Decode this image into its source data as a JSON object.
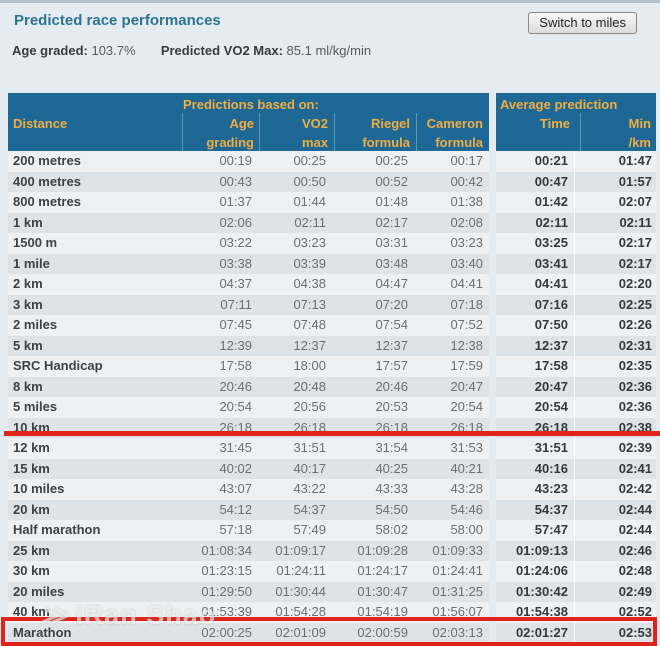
{
  "page": {
    "title": "Predicted race performances",
    "switch_button": "Switch to miles",
    "age_graded_label": "Age graded:",
    "age_graded_value": "103.7%",
    "vo2_label": "Predicted VO2 Max:",
    "vo2_value": "85.1 ml/kg/min"
  },
  "colors": {
    "header_bg": "#1d6894",
    "header_text": "#f0ad42",
    "title_text": "#2d7492",
    "row_odd": "#eef0f2",
    "row_even": "#dee3e8",
    "annotation_red": "#e0241c",
    "page_bg": "#e4ebf1"
  },
  "header": {
    "distance": "Distance",
    "predictions_group": "Predictions based on:",
    "average_group": "Average prediction",
    "cols": [
      {
        "line1": "Age",
        "line2": "grading"
      },
      {
        "line1": "VO2",
        "line2": "max"
      },
      {
        "line1": "Riegel",
        "line2": "formula"
      },
      {
        "line1": "Cameron",
        "line2": "formula"
      }
    ],
    "time": "Time",
    "min": "Min",
    "per_km": "/km"
  },
  "table": {
    "rows": [
      {
        "distance": "200 metres",
        "age_grading": "00:19",
        "vo2_max": "00:25",
        "riegel": "00:25",
        "cameron": "00:17",
        "avg_time": "00:21",
        "min_km": "01:47"
      },
      {
        "distance": "400 metres",
        "age_grading": "00:43",
        "vo2_max": "00:50",
        "riegel": "00:52",
        "cameron": "00:42",
        "avg_time": "00:47",
        "min_km": "01:57"
      },
      {
        "distance": "800 metres",
        "age_grading": "01:37",
        "vo2_max": "01:44",
        "riegel": "01:48",
        "cameron": "01:38",
        "avg_time": "01:42",
        "min_km": "02:07"
      },
      {
        "distance": "1 km",
        "age_grading": "02:06",
        "vo2_max": "02:11",
        "riegel": "02:17",
        "cameron": "02:08",
        "avg_time": "02:11",
        "min_km": "02:11"
      },
      {
        "distance": "1500 m",
        "age_grading": "03:22",
        "vo2_max": "03:23",
        "riegel": "03:31",
        "cameron": "03:23",
        "avg_time": "03:25",
        "min_km": "02:17"
      },
      {
        "distance": "1 mile",
        "age_grading": "03:38",
        "vo2_max": "03:39",
        "riegel": "03:48",
        "cameron": "03:40",
        "avg_time": "03:41",
        "min_km": "02:17"
      },
      {
        "distance": "2 km",
        "age_grading": "04:37",
        "vo2_max": "04:38",
        "riegel": "04:47",
        "cameron": "04:41",
        "avg_time": "04:41",
        "min_km": "02:20"
      },
      {
        "distance": "3 km",
        "age_grading": "07:11",
        "vo2_max": "07:13",
        "riegel": "07:20",
        "cameron": "07:18",
        "avg_time": "07:16",
        "min_km": "02:25"
      },
      {
        "distance": "2 miles",
        "age_grading": "07:45",
        "vo2_max": "07:48",
        "riegel": "07:54",
        "cameron": "07:52",
        "avg_time": "07:50",
        "min_km": "02:26"
      },
      {
        "distance": "5 km",
        "age_grading": "12:39",
        "vo2_max": "12:37",
        "riegel": "12:37",
        "cameron": "12:38",
        "avg_time": "12:37",
        "min_km": "02:31"
      },
      {
        "distance": "SRC Handicap",
        "age_grading": "17:58",
        "vo2_max": "18:00",
        "riegel": "17:57",
        "cameron": "17:59",
        "avg_time": "17:58",
        "min_km": "02:35"
      },
      {
        "distance": "8 km",
        "age_grading": "20:46",
        "vo2_max": "20:48",
        "riegel": "20:46",
        "cameron": "20:47",
        "avg_time": "20:47",
        "min_km": "02:36"
      },
      {
        "distance": "5 miles",
        "age_grading": "20:54",
        "vo2_max": "20:56",
        "riegel": "20:53",
        "cameron": "20:54",
        "avg_time": "20:54",
        "min_km": "02:36"
      },
      {
        "distance": "10 km",
        "age_grading": "26:18",
        "vo2_max": "26:18",
        "riegel": "26:18",
        "cameron": "26:18",
        "avg_time": "26:18",
        "min_km": "02:38"
      },
      {
        "distance": "12 km",
        "age_grading": "31:45",
        "vo2_max": "31:51",
        "riegel": "31:54",
        "cameron": "31:53",
        "avg_time": "31:51",
        "min_km": "02:39"
      },
      {
        "distance": "15 km",
        "age_grading": "40:02",
        "vo2_max": "40:17",
        "riegel": "40:25",
        "cameron": "40:21",
        "avg_time": "40:16",
        "min_km": "02:41"
      },
      {
        "distance": "10 miles",
        "age_grading": "43:07",
        "vo2_max": "43:22",
        "riegel": "43:33",
        "cameron": "43:28",
        "avg_time": "43:23",
        "min_km": "02:42"
      },
      {
        "distance": "20 km",
        "age_grading": "54:12",
        "vo2_max": "54:37",
        "riegel": "54:50",
        "cameron": "54:46",
        "avg_time": "54:37",
        "min_km": "02:44"
      },
      {
        "distance": "Half marathon",
        "age_grading": "57:18",
        "vo2_max": "57:49",
        "riegel": "58:02",
        "cameron": "58:00",
        "avg_time": "57:47",
        "min_km": "02:44"
      },
      {
        "distance": "25 km",
        "age_grading": "01:08:34",
        "vo2_max": "01:09:17",
        "riegel": "01:09:28",
        "cameron": "01:09:33",
        "avg_time": "01:09:13",
        "min_km": "02:46"
      },
      {
        "distance": "30 km",
        "age_grading": "01:23:15",
        "vo2_max": "01:24:11",
        "riegel": "01:24:17",
        "cameron": "01:24:41",
        "avg_time": "01:24:06",
        "min_km": "02:48"
      },
      {
        "distance": "20 miles",
        "age_grading": "01:29:50",
        "vo2_max": "01:30:44",
        "riegel": "01:30:47",
        "cameron": "01:31:25",
        "avg_time": "01:30:42",
        "min_km": "02:49"
      },
      {
        "distance": "40 km",
        "age_grading": "01:53:39",
        "vo2_max": "01:54:28",
        "riegel": "01:54:19",
        "cameron": "01:56:07",
        "avg_time": "01:54:38",
        "min_km": "02:52"
      },
      {
        "distance": "Marathon",
        "age_grading": "02:00:25",
        "vo2_max": "02:01:09",
        "riegel": "02:00:59",
        "cameron": "02:03:13",
        "avg_time": "02:01:27",
        "min_km": "02:53"
      }
    ]
  },
  "annotations": {
    "watermark_logo": "≫",
    "watermark_text": "iRan Shao",
    "underlined_row": "10 km",
    "boxed_row": "Marathon"
  }
}
